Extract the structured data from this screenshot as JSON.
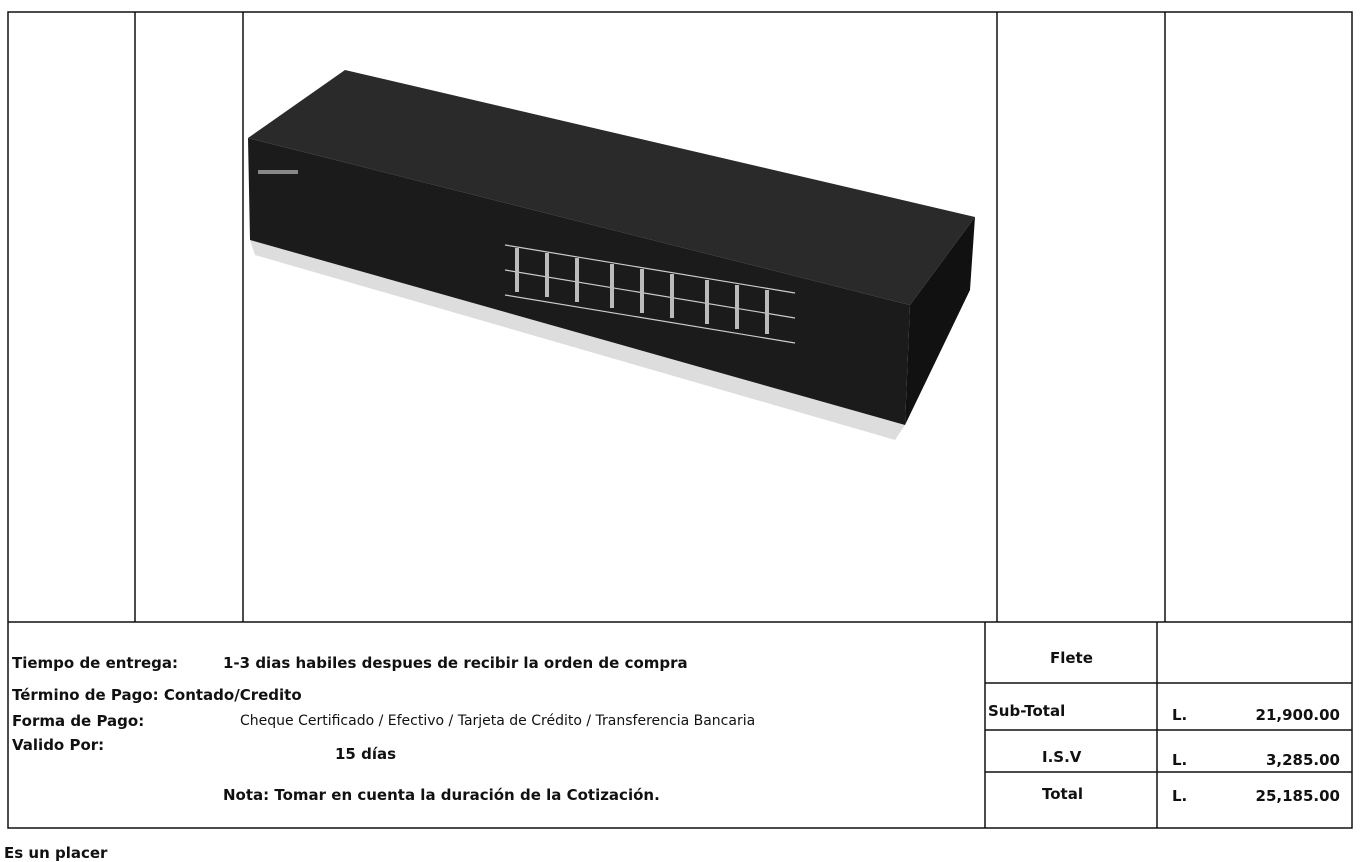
{
  "terms": {
    "delivery_label": "Tiempo de entrega:",
    "delivery_value": "1-3 dias habiles despues de recibir la orden de compra",
    "payment_term": "Término de Pago: Contado/Credito",
    "payment_form_label": "Forma de Pago:",
    "payment_form_value": "Cheque Certificado / Efectivo / Tarjeta de Crédito / Transferencia Bancaria",
    "valid_label": "Valido Por:",
    "valid_value": "15 días",
    "note": "Nota: Tomar en cuenta la duración de la Cotización."
  },
  "totals": {
    "freight_label": "Flete",
    "rows": [
      {
        "label": "Sub-Total",
        "currency": "L.",
        "amount": "21,900.00"
      },
      {
        "label": "I.S.V",
        "currency": "L.",
        "amount": "3,285.00"
      },
      {
        "label": "Total",
        "currency": "L.",
        "amount": "25,185.00"
      }
    ]
  },
  "footer": "Es un placer"
}
